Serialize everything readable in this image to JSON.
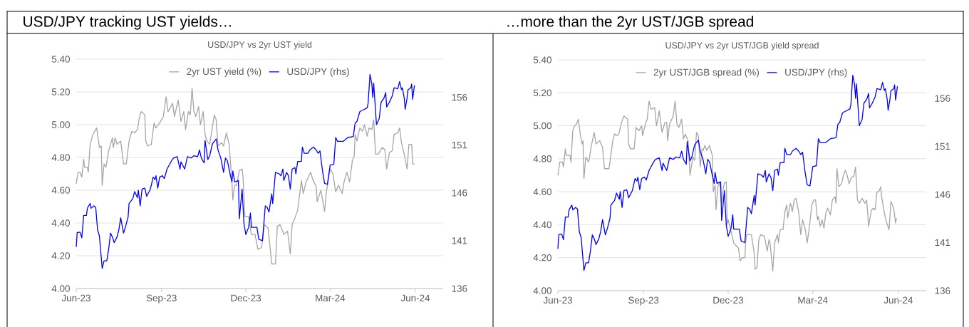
{
  "chart_data": [
    {
      "type": "line",
      "title": "USD/JPY tracking UST yields…",
      "subtitle": "USD/JPY vs 2yr UST yield",
      "xlim": [
        "2023-06-01",
        "2024-07-01"
      ],
      "xticks": [
        {
          "value": "2023-06-01",
          "label": "Jun-23"
        },
        {
          "value": "2023-09-01",
          "label": "Sep-23"
        },
        {
          "value": "2023-12-01",
          "label": "Dec-23"
        },
        {
          "value": "2024-03-01",
          "label": "Mar-24"
        },
        {
          "value": "2024-06-01",
          "label": "Jun-24"
        }
      ],
      "ylim": [
        4,
        5.4
      ],
      "yticks": [
        {
          "value": 4,
          "label": "4.00"
        },
        {
          "value": 4.2,
          "label": "4.20"
        },
        {
          "value": 4.4,
          "label": "4.40"
        },
        {
          "value": 4.6,
          "label": "4.60"
        },
        {
          "value": 4.8,
          "label": "4.80"
        },
        {
          "value": 5,
          "label": "5.00"
        },
        {
          "value": 5.2,
          "label": "5.20"
        },
        {
          "value": 5.4,
          "label": "5.40"
        }
      ],
      "y2lim": [
        136,
        160
      ],
      "y2ticks": [
        136,
        141,
        146,
        151,
        156
      ],
      "grid": "y",
      "legend": "top",
      "series": [
        {
          "name": "2yr UST yield (%)",
          "color": "#a6a6a6",
          "axis": "y",
          "x": [
            "2023-06-01",
            "2023-06-03",
            "2023-06-05",
            "2023-06-07",
            "2023-06-09",
            "2023-06-10",
            "2023-06-13",
            "2023-06-14",
            "2023-06-16",
            "2023-06-19",
            "2023-06-23",
            "2023-06-26",
            "2023-06-28",
            "2023-06-29",
            "2023-07-01",
            "2023-07-03",
            "2023-07-06",
            "2023-07-10",
            "2023-07-11",
            "2023-07-13",
            "2023-07-15",
            "2023-07-19",
            "2023-07-22",
            "2023-07-25",
            "2023-07-28",
            "2023-07-31",
            "2023-08-03",
            "2023-08-06",
            "2023-08-08",
            "2023-08-10",
            "2023-08-14",
            "2023-08-15",
            "2023-08-17",
            "2023-08-21",
            "2023-08-24",
            "2023-08-26",
            "2023-08-30",
            "2023-09-03",
            "2023-09-06",
            "2023-09-08",
            "2023-09-13",
            "2023-09-15",
            "2023-09-19",
            "2023-09-22",
            "2023-09-25",
            "2023-09-27",
            "2023-09-30",
            "2023-10-02",
            "2023-10-04",
            "2023-10-06",
            "2023-10-08",
            "2023-10-11",
            "2023-10-13",
            "2023-10-16",
            "2023-10-18",
            "2023-10-20",
            "2023-10-23",
            "2023-10-28",
            "2023-10-30",
            "2023-11-01",
            "2023-11-05",
            "2023-11-07",
            "2023-11-10",
            "2023-11-13",
            "2023-11-16",
            "2023-11-17",
            "2023-11-19",
            "2023-11-21",
            "2023-11-24",
            "2023-11-27",
            "2023-11-28",
            "2023-11-30",
            "2023-12-03",
            "2023-12-04",
            "2023-12-07",
            "2023-12-11",
            "2023-12-14",
            "2023-12-18",
            "2023-12-21",
            "2023-12-25",
            "2023-12-29",
            "2024-01-02",
            "2024-01-04",
            "2024-01-07",
            "2024-01-11",
            "2024-01-15",
            "2024-01-18",
            "2024-01-20",
            "2024-01-23",
            "2024-01-26",
            "2024-01-30",
            "2024-02-01",
            "2024-02-04",
            "2024-02-09",
            "2024-02-11",
            "2024-02-15",
            "2024-02-16",
            "2024-02-20",
            "2024-02-24",
            "2024-02-26",
            "2024-03-01",
            "2024-03-04",
            "2024-03-07",
            "2024-03-10",
            "2024-03-14",
            "2024-03-16",
            "2024-03-19",
            "2024-03-22",
            "2024-03-25",
            "2024-03-27",
            "2024-03-28",
            "2024-03-30",
            "2024-04-02",
            "2024-04-05",
            "2024-04-07",
            "2024-04-10",
            "2024-04-12",
            "2024-04-15",
            "2024-04-17",
            "2024-04-19",
            "2024-04-22",
            "2024-04-26",
            "2024-04-29",
            "2024-05-01",
            "2024-05-04",
            "2024-05-07",
            "2024-05-09",
            "2024-05-13",
            "2024-05-15",
            "2024-05-17",
            "2024-05-20",
            "2024-05-23",
            "2024-05-25",
            "2024-05-28",
            "2024-05-29",
            "2024-05-31"
          ],
          "values": [
            4.64,
            4.71,
            4.71,
            4.68,
            4.79,
            4.74,
            4.74,
            4.71,
            4.88,
            4.94,
            4.98,
            4.86,
            4.87,
            4.63,
            4.76,
            4.74,
            4.84,
            4.92,
            4.86,
            4.92,
            4.88,
            4.9,
            4.76,
            4.76,
            4.9,
            4.96,
            4.95,
            4.97,
            5.04,
            5.08,
            5.06,
            4.9,
            4.87,
            4.88,
            5.01,
            4.98,
            5.01,
            5.05,
            5.17,
            5.08,
            5.13,
            5.05,
            5.15,
            5.02,
            5.08,
            4.97,
            5.08,
            5.06,
            5.22,
            5.08,
            5.05,
            5.11,
            5.0,
            5.08,
            4.94,
            4.9,
            4.88,
            5.06,
            5.03,
            4.87,
            4.89,
            4.87,
            4.95,
            4.88,
            4.65,
            4.54,
            4.63,
            4.63,
            4.72,
            4.73,
            4.68,
            4.44,
            4.44,
            4.44,
            4.33,
            4.33,
            4.24,
            4.25,
            4.39,
            4.37,
            4.15,
            4.15,
            4.38,
            4.39,
            4.33,
            4.35,
            4.21,
            4.39,
            4.43,
            4.48,
            4.66,
            4.58,
            4.65,
            4.71,
            4.67,
            4.62,
            4.53,
            4.6,
            4.47,
            4.59,
            4.73,
            4.7,
            4.59,
            4.63,
            4.58,
            4.65,
            4.71,
            4.65,
            4.78,
            4.81,
            4.94,
            4.9,
            4.98,
            4.96,
            5.0,
            4.93,
            4.98,
            4.97,
            5.03,
            4.82,
            4.82,
            4.86,
            4.85,
            4.73,
            4.83,
            4.84,
            4.94,
            4.95,
            4.98,
            4.89,
            4.82,
            4.73,
            4.88,
            4.88,
            4.76,
            4.76
          ]
        },
        {
          "name": "USD/JPY (rhs)",
          "color": "#0000ff",
          "axis": "y2",
          "x": [
            "2023-06-01",
            "2023-06-02",
            "2023-06-05",
            "2023-06-07",
            "2023-06-09",
            "2023-06-12",
            "2023-06-13",
            "2023-06-16",
            "2023-06-17",
            "2023-06-20",
            "2023-06-22",
            "2023-06-24",
            "2023-06-26",
            "2023-06-29",
            "2023-07-01",
            "2023-07-04",
            "2023-07-06",
            "2023-07-08",
            "2023-07-10",
            "2023-07-12",
            "2023-07-15",
            "2023-07-17",
            "2023-07-19",
            "2023-07-22",
            "2023-07-24",
            "2023-07-27",
            "2023-07-28",
            "2023-08-01",
            "2023-08-03",
            "2023-08-06",
            "2023-08-07",
            "2023-08-09",
            "2023-08-11",
            "2023-08-14",
            "2023-08-16",
            "2023-08-20",
            "2023-08-23",
            "2023-08-25",
            "2023-08-26",
            "2023-08-28",
            "2023-08-30",
            "2023-09-02",
            "2023-09-04",
            "2023-09-07",
            "2023-09-12",
            "2023-09-14",
            "2023-09-18",
            "2023-09-21",
            "2023-09-22",
            "2023-09-26",
            "2023-09-29",
            "2023-10-03",
            "2023-10-06",
            "2023-10-10",
            "2023-10-12",
            "2023-10-14",
            "2023-10-17",
            "2023-10-18",
            "2023-10-21",
            "2023-10-23",
            "2023-10-26",
            "2023-10-30",
            "2023-11-01",
            "2023-11-04",
            "2023-11-07",
            "2023-11-09",
            "2023-11-11",
            "2023-11-14",
            "2023-11-16",
            "2023-11-17",
            "2023-11-19",
            "2023-11-23",
            "2023-11-24",
            "2023-11-27",
            "2023-11-29",
            "2023-12-01",
            "2023-12-04",
            "2023-12-06",
            "2023-12-07",
            "2023-12-12",
            "2023-12-13",
            "2023-12-15",
            "2023-12-19",
            "2023-12-22",
            "2023-12-24",
            "2023-12-26",
            "2023-12-29",
            "2023-12-30",
            "2024-01-02",
            "2024-01-06",
            "2024-01-08",
            "2024-01-10",
            "2024-01-11",
            "2024-01-14",
            "2024-01-16",
            "2024-01-18",
            "2024-01-20",
            "2024-01-23",
            "2024-01-24",
            "2024-01-26",
            "2024-01-30",
            "2024-01-31",
            "2024-02-02",
            "2024-02-06",
            "2024-02-08",
            "2024-02-10",
            "2024-02-12",
            "2024-02-15",
            "2024-02-17",
            "2024-02-19",
            "2024-02-22",
            "2024-02-24",
            "2024-02-27",
            "2024-03-01",
            "2024-03-05",
            "2024-03-07",
            "2024-03-09",
            "2024-03-15",
            "2024-03-20",
            "2024-03-26",
            "2024-03-28",
            "2024-03-30",
            "2024-04-02",
            "2024-04-05",
            "2024-04-10",
            "2024-04-11",
            "2024-04-13",
            "2024-04-15",
            "2024-04-16",
            "2024-04-17",
            "2024-04-20",
            "2024-04-23",
            "2024-04-25",
            "2024-04-28",
            "2024-04-30",
            "2024-05-01",
            "2024-05-04",
            "2024-05-07",
            "2024-05-09",
            "2024-05-13",
            "2024-05-15",
            "2024-05-17",
            "2024-05-18",
            "2024-05-20",
            "2024-05-21",
            "2024-05-23",
            "2024-05-24",
            "2024-05-27",
            "2024-05-28",
            "2024-05-29",
            "2024-05-31"
          ],
          "values": [
            140.35,
            141.85,
            141.9,
            141.3,
            143.65,
            143.65,
            144.4,
            144.9,
            144.4,
            144.65,
            144.5,
            142.15,
            141.5,
            138.1,
            138.9,
            138.9,
            140.15,
            141.8,
            141.4,
            140.8,
            141.4,
            142.15,
            143.4,
            141.8,
            142.4,
            143.5,
            144.9,
            145.4,
            146.15,
            145.5,
            146.3,
            144.65,
            146.4,
            146.5,
            145.65,
            146.4,
            147.65,
            147.4,
            147.8,
            146.5,
            147.65,
            147.8,
            147.5,
            148.5,
            149.4,
            149.65,
            149.8,
            148.5,
            149.25,
            148.5,
            149.8,
            149.65,
            149.9,
            149.8,
            150.5,
            149.65,
            149.15,
            151.5,
            149.5,
            149.9,
            151.15,
            151.65,
            150.5,
            149.65,
            148.15,
            149.65,
            149.4,
            148.0,
            147.15,
            148.3,
            147.15,
            147.3,
            143.3,
            146.4,
            142.8,
            141.65,
            142.4,
            143.9,
            142.4,
            142.4,
            142.4,
            141.15,
            141.0,
            144.65,
            144.5,
            144.0,
            145.9,
            144.9,
            148.15,
            148.0,
            147.8,
            148.5,
            147.3,
            148.15,
            147.8,
            146.4,
            148.5,
            148.65,
            148.0,
            149.3,
            149.3,
            150.8,
            150.15,
            150.15,
            150.5,
            150.65,
            150.8,
            150.5,
            150.15,
            150.4,
            148.15,
            147.0,
            146.9,
            148.9,
            149.0,
            151.8,
            151.4,
            151.4,
            151.8,
            151.9,
            153.3,
            153.5,
            154.5,
            154.65,
            154.9,
            155.4,
            158.4,
            157.4,
            156.0,
            157.5,
            153.15,
            153.8,
            155.5,
            155.9,
            156.5,
            155.0,
            155.5,
            156.15,
            157.0,
            156.9,
            157.65,
            156.8,
            157.0,
            155.9,
            154.75,
            155.9,
            156.8,
            157.0,
            157.4,
            155.8,
            157.25
          ]
        }
      ]
    },
    {
      "type": "line",
      "title": "…more than the 2yr UST/JGB spread",
      "subtitle": "USD/JPY vs 2yr UST/JGB yield spread",
      "xlim": [
        "2023-06-01",
        "2024-07-01"
      ],
      "xticks": [
        {
          "value": "2023-06-01",
          "label": "Jun-23"
        },
        {
          "value": "2023-09-01",
          "label": "Sep-23"
        },
        {
          "value": "2023-12-01",
          "label": "Dec-23"
        },
        {
          "value": "2024-03-01",
          "label": "Mar-24"
        },
        {
          "value": "2024-06-01",
          "label": "Jun-24"
        }
      ],
      "ylim": [
        4,
        5.4
      ],
      "yticks": [
        {
          "value": 4,
          "label": "4.00"
        },
        {
          "value": 4.2,
          "label": "4.20"
        },
        {
          "value": 4.4,
          "label": "4.40"
        },
        {
          "value": 4.6,
          "label": "4.60"
        },
        {
          "value": 4.8,
          "label": "4.80"
        },
        {
          "value": 5,
          "label": "5.00"
        },
        {
          "value": 5.2,
          "label": "5.20"
        },
        {
          "value": 5.4,
          "label": "5.40"
        }
      ],
      "y2lim": [
        136,
        160
      ],
      "y2ticks": [
        136,
        141,
        146,
        151,
        156
      ],
      "grid": "y",
      "legend": "top",
      "series": [
        {
          "name": "2yr UST/JGB spread (%)",
          "color": "#a6a6a6",
          "axis": "y",
          "x": [
            "2023-06-01",
            "2023-06-03",
            "2023-06-06",
            "2023-06-07",
            "2023-06-09",
            "2023-06-10",
            "2023-06-14",
            "2023-06-15",
            "2023-06-17",
            "2023-06-19",
            "2023-06-21",
            "2023-06-23",
            "2023-06-25",
            "2023-06-27",
            "2023-06-28",
            "2023-06-29",
            "2023-07-01",
            "2023-07-04",
            "2023-07-05",
            "2023-07-07",
            "2023-07-10",
            "2023-07-12",
            "2023-07-16",
            "2023-07-19",
            "2023-07-21",
            "2023-07-26",
            "2023-07-30",
            "2023-08-01",
            "2023-08-04",
            "2023-08-06",
            "2023-08-07",
            "2023-08-09",
            "2023-08-11",
            "2023-08-15",
            "2023-08-16",
            "2023-08-18",
            "2023-08-22",
            "2023-08-24",
            "2023-08-27",
            "2023-08-30",
            "2023-08-31",
            "2023-09-03",
            "2023-09-05",
            "2023-09-07",
            "2023-09-09",
            "2023-09-13",
            "2023-09-15",
            "2023-09-18",
            "2023-09-21",
            "2023-09-24",
            "2023-09-26",
            "2023-09-27",
            "2023-09-29",
            "2023-10-03",
            "2023-10-05",
            "2023-10-07",
            "2023-10-09",
            "2023-10-12",
            "2023-10-14",
            "2023-10-16",
            "2023-10-19",
            "2023-10-21",
            "2023-10-24",
            "2023-10-26",
            "2023-10-28",
            "2023-10-30",
            "2023-11-01",
            "2023-11-03",
            "2023-11-04",
            "2023-11-06",
            "2023-11-08",
            "2023-11-11",
            "2023-11-14",
            "2023-11-15",
            "2023-11-17",
            "2023-11-18",
            "2023-11-20",
            "2023-11-22",
            "2023-11-24",
            "2023-11-26",
            "2023-11-27",
            "2023-11-29",
            "2023-11-30",
            "2023-12-01",
            "2023-12-05",
            "2023-12-07",
            "2023-12-10",
            "2023-12-12",
            "2023-12-14",
            "2023-12-16",
            "2023-12-19",
            "2023-12-20",
            "2023-12-21",
            "2023-12-26",
            "2023-12-29",
            "2023-12-30",
            "2024-01-01",
            "2024-01-03",
            "2024-01-05",
            "2024-01-09",
            "2024-01-12",
            "2024-01-14",
            "2024-01-15",
            "2024-01-18",
            "2024-01-20",
            "2024-01-23",
            "2024-01-24",
            "2024-01-26",
            "2024-01-29",
            "2024-01-31",
            "2024-02-02",
            "2024-02-03",
            "2024-02-06",
            "2024-02-08",
            "2024-02-10",
            "2024-02-12",
            "2024-02-15",
            "2024-02-17",
            "2024-02-19",
            "2024-02-22",
            "2024-02-24",
            "2024-02-26",
            "2024-02-29",
            "2024-03-02",
            "2024-03-04",
            "2024-03-06",
            "2024-03-07",
            "2024-03-09",
            "2024-03-11",
            "2024-03-13",
            "2024-03-15",
            "2024-03-17",
            "2024-03-20",
            "2024-03-22",
            "2024-03-25",
            "2024-03-26",
            "2024-03-27",
            "2024-03-29",
            "2024-04-01",
            "2024-04-03",
            "2024-04-05",
            "2024-04-07",
            "2024-04-09",
            "2024-04-12",
            "2024-04-14",
            "2024-04-16",
            "2024-04-18",
            "2024-04-20",
            "2024-04-23",
            "2024-04-26",
            "2024-04-28",
            "2024-04-30",
            "2024-05-03",
            "2024-05-05",
            "2024-05-07",
            "2024-05-09",
            "2024-05-11",
            "2024-05-13",
            "2024-05-14",
            "2024-05-17",
            "2024-05-19",
            "2024-05-22",
            "2024-05-24",
            "2024-05-27",
            "2024-05-29",
            "2024-05-30"
          ],
          "values": [
            4.7,
            4.78,
            4.78,
            4.75,
            4.86,
            4.82,
            4.82,
            4.78,
            4.97,
            5.0,
            5.01,
            5.04,
            4.95,
            4.89,
            4.91,
            4.68,
            4.81,
            4.78,
            4.81,
            4.88,
            4.96,
            4.89,
            4.91,
            4.87,
            4.74,
            4.74,
            4.91,
            4.95,
            4.94,
            4.96,
            4.99,
            5.03,
            5.06,
            5.04,
            4.89,
            4.86,
            4.86,
            4.99,
            4.97,
            5.0,
            4.94,
            5.01,
            5.04,
            5.15,
            5.1,
            5.11,
            5.0,
            5.09,
            4.96,
            5.02,
            5.02,
            4.91,
            5.01,
            5.06,
            5.15,
            5.01,
            4.99,
            5.04,
            4.92,
            4.95,
            4.91,
            4.7,
            4.81,
            4.79,
            4.96,
            4.94,
            4.75,
            4.86,
            4.85,
            4.88,
            4.85,
            4.88,
            4.82,
            4.6,
            4.64,
            4.49,
            4.63,
            4.66,
            4.53,
            4.63,
            4.65,
            4.66,
            4.4,
            4.43,
            4.34,
            4.29,
            4.27,
            4.26,
            4.18,
            4.2,
            4.2,
            4.3,
            4.34,
            4.34,
            4.23,
            4.13,
            4.14,
            4.31,
            4.34,
            4.33,
            4.24,
            4.31,
            4.29,
            4.12,
            4.29,
            4.34,
            4.29,
            4.37,
            4.37,
            4.48,
            4.52,
            4.44,
            4.53,
            4.48,
            4.55,
            4.56,
            4.47,
            4.34,
            4.43,
            4.37,
            4.29,
            4.37,
            4.52,
            4.55,
            4.55,
            4.43,
            4.45,
            4.39,
            4.43,
            4.38,
            4.47,
            4.5,
            4.46,
            4.55,
            4.57,
            4.53,
            4.74,
            4.63,
            4.65,
            4.7,
            4.73,
            4.7,
            4.65,
            4.69,
            4.69,
            4.75,
            4.55,
            4.53,
            4.56,
            4.53,
            4.55,
            4.39,
            4.49,
            4.5,
            4.49,
            4.6,
            4.6,
            4.63,
            4.57,
            4.47,
            4.42,
            4.37,
            4.54,
            4.5,
            4.41,
            4.44
          ]
        },
        {
          "name": "USD/JPY (rhs)",
          "color": "#0000ff",
          "axis": "y2",
          "x": [
            "2023-06-01",
            "2023-06-02",
            "2023-06-05",
            "2023-06-07",
            "2023-06-09",
            "2023-06-12",
            "2023-06-13",
            "2023-06-16",
            "2023-06-17",
            "2023-06-20",
            "2023-06-22",
            "2023-06-24",
            "2023-06-26",
            "2023-06-29",
            "2023-07-01",
            "2023-07-04",
            "2023-07-06",
            "2023-07-08",
            "2023-07-10",
            "2023-07-12",
            "2023-07-15",
            "2023-07-17",
            "2023-07-19",
            "2023-07-22",
            "2023-07-24",
            "2023-07-27",
            "2023-07-28",
            "2023-08-01",
            "2023-08-03",
            "2023-08-06",
            "2023-08-07",
            "2023-08-09",
            "2023-08-11",
            "2023-08-14",
            "2023-08-16",
            "2023-08-20",
            "2023-08-23",
            "2023-08-25",
            "2023-08-26",
            "2023-08-28",
            "2023-08-30",
            "2023-09-02",
            "2023-09-04",
            "2023-09-07",
            "2023-09-12",
            "2023-09-14",
            "2023-09-18",
            "2023-09-21",
            "2023-09-22",
            "2023-09-26",
            "2023-09-29",
            "2023-10-03",
            "2023-10-06",
            "2023-10-10",
            "2023-10-12",
            "2023-10-14",
            "2023-10-17",
            "2023-10-18",
            "2023-10-21",
            "2023-10-23",
            "2023-10-26",
            "2023-10-30",
            "2023-11-01",
            "2023-11-04",
            "2023-11-07",
            "2023-11-09",
            "2023-11-11",
            "2023-11-14",
            "2023-11-16",
            "2023-11-17",
            "2023-11-19",
            "2023-11-23",
            "2023-11-24",
            "2023-11-27",
            "2023-11-29",
            "2023-12-01",
            "2023-12-04",
            "2023-12-06",
            "2023-12-07",
            "2023-12-12",
            "2023-12-13",
            "2023-12-15",
            "2023-12-19",
            "2023-12-22",
            "2023-12-24",
            "2023-12-26",
            "2023-12-29",
            "2023-12-30",
            "2024-01-02",
            "2024-01-06",
            "2024-01-08",
            "2024-01-10",
            "2024-01-11",
            "2024-01-14",
            "2024-01-16",
            "2024-01-18",
            "2024-01-20",
            "2024-01-23",
            "2024-01-24",
            "2024-01-26",
            "2024-01-30",
            "2024-01-31",
            "2024-02-02",
            "2024-02-06",
            "2024-02-08",
            "2024-02-10",
            "2024-02-12",
            "2024-02-15",
            "2024-02-17",
            "2024-02-19",
            "2024-02-22",
            "2024-02-24",
            "2024-02-27",
            "2024-03-01",
            "2024-03-05",
            "2024-03-07",
            "2024-03-09",
            "2024-03-15",
            "2024-03-20",
            "2024-03-26",
            "2024-03-28",
            "2024-03-30",
            "2024-04-02",
            "2024-04-05",
            "2024-04-10",
            "2024-04-11",
            "2024-04-13",
            "2024-04-15",
            "2024-04-16",
            "2024-04-17",
            "2024-04-20",
            "2024-04-23",
            "2024-04-25",
            "2024-04-28",
            "2024-04-30",
            "2024-05-01",
            "2024-05-04",
            "2024-05-07",
            "2024-05-09",
            "2024-05-13",
            "2024-05-15",
            "2024-05-17",
            "2024-05-18",
            "2024-05-20",
            "2024-05-21",
            "2024-05-23",
            "2024-05-24",
            "2024-05-27",
            "2024-05-28",
            "2024-05-29",
            "2024-05-31"
          ],
          "values": [
            140.35,
            141.85,
            141.9,
            141.3,
            143.65,
            143.65,
            144.4,
            144.9,
            144.4,
            144.65,
            144.5,
            142.15,
            141.5,
            138.1,
            138.9,
            138.9,
            140.15,
            141.8,
            141.4,
            140.8,
            141.4,
            142.15,
            143.4,
            141.8,
            142.4,
            143.5,
            144.9,
            145.4,
            146.15,
            145.5,
            146.3,
            144.65,
            146.4,
            146.5,
            145.65,
            146.4,
            147.65,
            147.4,
            147.8,
            146.5,
            147.65,
            147.8,
            147.5,
            148.5,
            149.4,
            149.65,
            149.8,
            148.5,
            149.25,
            148.5,
            149.8,
            149.65,
            149.9,
            149.8,
            150.5,
            149.65,
            149.15,
            151.5,
            149.5,
            149.9,
            151.15,
            151.65,
            150.5,
            149.65,
            148.15,
            149.65,
            149.4,
            148.0,
            147.15,
            148.3,
            147.15,
            147.3,
            143.3,
            146.4,
            142.8,
            141.65,
            142.4,
            143.9,
            142.4,
            142.4,
            142.4,
            141.15,
            141.0,
            144.65,
            144.5,
            144.0,
            145.9,
            144.9,
            148.15,
            148.0,
            147.8,
            148.5,
            147.3,
            148.15,
            147.8,
            146.4,
            148.5,
            148.65,
            148.0,
            149.3,
            149.3,
            150.8,
            150.15,
            150.15,
            150.5,
            150.65,
            150.8,
            150.5,
            150.15,
            150.4,
            148.15,
            147.0,
            146.9,
            148.9,
            149.0,
            151.8,
            151.4,
            151.4,
            151.8,
            151.9,
            153.3,
            153.5,
            154.5,
            154.65,
            154.9,
            155.4,
            158.4,
            157.4,
            156.0,
            157.5,
            153.15,
            153.8,
            155.5,
            155.9,
            156.5,
            155.0,
            155.5,
            156.15,
            157.0,
            156.9,
            157.65,
            156.8,
            157.0,
            155.9,
            154.75,
            155.9,
            156.8,
            157.0,
            157.4,
            155.8,
            157.25
          ]
        }
      ]
    }
  ]
}
